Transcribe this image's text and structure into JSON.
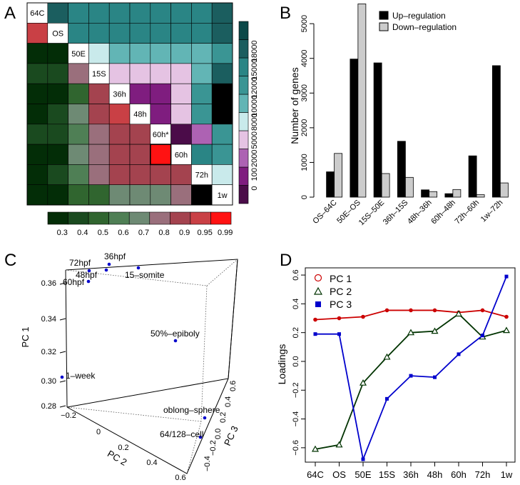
{
  "panels": {
    "a": "A",
    "b": "B",
    "c": "C",
    "d": "D"
  },
  "chart_data": [
    {
      "type": "heatmap",
      "panel": "A",
      "labels": [
        "64C",
        "OS",
        "50E",
        "15S",
        "36h",
        "48h",
        "60h*",
        "60h",
        "72h",
        "1w"
      ],
      "lower_colorbar": {
        "ticks": [
          "0.3",
          "0.4",
          "0.5",
          "0.6",
          "0.7",
          "0.8",
          "0.9",
          "0.95",
          "0.99"
        ],
        "colors": [
          "#032d07",
          "#1a4a1f",
          "#30652f",
          "#4f7f55",
          "#6e8a74",
          "#9a6f7c",
          "#a4434f",
          "#c94045",
          "#ff1212"
        ]
      },
      "upper_colorbar": {
        "ticks": [
          "0",
          "100",
          "2000",
          "5000",
          "8000",
          "10000",
          "12000",
          "15000",
          "18000"
        ],
        "colors": [
          "#4b0c49",
          "#7f1d7f",
          "#ad62b3",
          "#e5c3e3",
          "#c9eaeb",
          "#62b5b5",
          "#3a9594",
          "#2a8585",
          "#1b5e5f",
          "#0c4848"
        ]
      },
      "lower_codes": [
        [],
        [
          7
        ],
        [
          0,
          0
        ],
        [
          1,
          1,
          5
        ],
        [
          0,
          0,
          2,
          6
        ],
        [
          0,
          1,
          4,
          6,
          7
        ],
        [
          1,
          1,
          3,
          5,
          6,
          6
        ],
        [
          0,
          0,
          4,
          5,
          6,
          6,
          8
        ],
        [
          0,
          1,
          3,
          5,
          6,
          6,
          6,
          6
        ],
        [
          0,
          0,
          2,
          2,
          4,
          4,
          4,
          5
        ]
      ],
      "upper_codes": [
        [
          8,
          7,
          7,
          7,
          7,
          7,
          7,
          7,
          8
        ],
        [
          7,
          7,
          7,
          7,
          7,
          7,
          7,
          8
        ],
        [
          4,
          5,
          5,
          5,
          5,
          5,
          6
        ],
        [
          3,
          3,
          3,
          3,
          5,
          8
        ],
        [
          1,
          1,
          3,
          6
        ],
        [
          1,
          3,
          6
        ],
        [
          0,
          2,
          6
        ],
        [
          7,
          6
        ],
        [
          4
        ],
        []
      ]
    },
    {
      "type": "bar",
      "panel": "B",
      "categories": [
        "OS–64C",
        "50E–OS",
        "15S–50E",
        "36h–15S",
        "48h–36h",
        "60h–48h",
        "72h–60h",
        "1w–72h"
      ],
      "series": [
        {
          "name": "Up–regulation",
          "color": "#000000",
          "values": [
            730,
            3980,
            3870,
            1610,
            210,
            100,
            1190,
            3790
          ]
        },
        {
          "name": "Down–regulation",
          "color": "#cccccc",
          "values": [
            1260,
            5570,
            680,
            570,
            160,
            220,
            70,
            410
          ]
        }
      ],
      "ylabel": "Number of genes",
      "ylim": [
        0,
        5600
      ],
      "yticks": [
        "0",
        "1000",
        "2000",
        "3000",
        "4000",
        "5000"
      ]
    },
    {
      "type": "scatter",
      "panel": "C",
      "axes": {
        "pc1_label": "PC 1",
        "pc2_label": "PC 2",
        "pc3_label": "PC 3",
        "pc1_ticks": [
          "0.28",
          "0.30",
          "0.32",
          "0.34",
          "0.36"
        ],
        "pc2_ticks": [
          "−0.2",
          "0",
          "0.2",
          "0.4",
          "0.6"
        ],
        "pc3_ticks": [
          "−0.4",
          "−0.2",
          "0.0",
          "0.2",
          "0.4",
          "0.6"
        ]
      },
      "points": [
        {
          "label": "72hpf"
        },
        {
          "label": "36hpf"
        },
        {
          "label": "48hpf"
        },
        {
          "label": "15–somite"
        },
        {
          "label": "60hpf"
        },
        {
          "label": "50%–epiboly"
        },
        {
          "label": "1–week"
        },
        {
          "label": "oblong–sphere"
        },
        {
          "label": "64/128–cell"
        }
      ]
    },
    {
      "type": "line",
      "panel": "D",
      "categories": [
        "64C",
        "OS",
        "50E",
        "15S",
        "36h",
        "48h",
        "60h",
        "72h",
        "1w"
      ],
      "ylabel": "Loadings",
      "ylim": [
        -0.7,
        0.65
      ],
      "yticks": [
        "−0.6",
        "−0.4",
        "−0.2",
        "0.0",
        "0.2",
        "0.4",
        "0.6"
      ],
      "series": [
        {
          "name": "PC 1",
          "color": "#cc0000",
          "marker": "circle",
          "values": [
            0.29,
            0.3,
            0.31,
            0.355,
            0.355,
            0.355,
            0.34,
            0.355,
            0.31
          ]
        },
        {
          "name": "PC 2",
          "color": "#003300",
          "marker": "triangle",
          "values": [
            -0.61,
            -0.58,
            -0.15,
            0.03,
            0.2,
            0.21,
            0.33,
            0.17,
            0.215
          ]
        },
        {
          "name": "PC 3",
          "color": "#0000cc",
          "marker": "square",
          "values": [
            0.19,
            0.19,
            -0.68,
            -0.26,
            -0.1,
            -0.11,
            0.05,
            0.18,
            0.59
          ]
        }
      ]
    }
  ]
}
